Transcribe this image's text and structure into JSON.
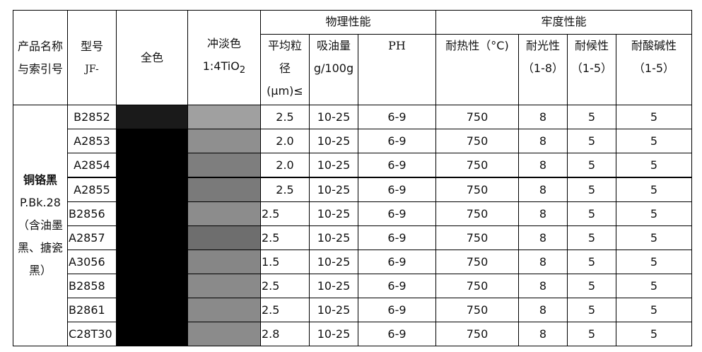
{
  "headers": {
    "product": "产品名称与索引号",
    "product_line1": "产品名称",
    "product_line2": "与索引号",
    "model_line1": "型号",
    "model_line2": "JF-",
    "masstone": "全色",
    "tint_line1": "冲淡色",
    "tint_line2": "1:4TiO",
    "tint_sub": "2",
    "physical": "物理性能",
    "fastness": "牢度性能",
    "particle_line1": "平均粒",
    "particle_line2": "径",
    "particle_line3": "(μm)≤",
    "oil_line1": "吸油量",
    "oil_line2": "g/100g",
    "ph": "PH",
    "heat": "耐热性（°C)",
    "light_line1": "耐光性",
    "light_line2": "（1-8）",
    "weather_line1": "耐候性",
    "weather_line2": "（1-5）",
    "acid_line1": "耐酸碱性",
    "acid_line2": "（1-5）"
  },
  "product": {
    "name": "铜铬黑",
    "index": "P.Bk.28",
    "note_line1": "（含油墨",
    "note_line2": "黑、搪瓷",
    "note_line3": "黑）"
  },
  "rows": [
    {
      "model": "B2852",
      "masstone": "#1a1a1a",
      "tint": "#a0a0a0",
      "particle": "2.5",
      "oil": "10-25",
      "ph": "6-9",
      "heat": "750",
      "light": "8",
      "weather": "5",
      "acid": "5"
    },
    {
      "model": "A2853",
      "masstone": "#000000",
      "tint": "#8f8f8f",
      "particle": "2.0",
      "oil": "10-25",
      "ph": "6-9",
      "heat": "750",
      "light": "8",
      "weather": "5",
      "acid": "5"
    },
    {
      "model": "A2854",
      "masstone": "#000000",
      "tint": "#7e7e7e",
      "particle": "2.0",
      "oil": "10-25",
      "ph": "6-9",
      "heat": "750",
      "light": "8",
      "weather": "5",
      "acid": "5"
    },
    {
      "model": "A2855",
      "masstone": "#000000",
      "tint": "#7a7a7a",
      "particle": "2.5",
      "oil": "10-25",
      "ph": "6-9",
      "heat": "750",
      "light": "8",
      "weather": "5",
      "acid": "5"
    },
    {
      "model": "B2856",
      "masstone": "#000000",
      "tint": "#8c8c8c",
      "particle": "2.5",
      "oil": "10-25",
      "ph": "6-9",
      "heat": "750",
      "light": "8",
      "weather": "5",
      "acid": "5"
    },
    {
      "model": "A2857",
      "masstone": "#000000",
      "tint": "#6e6e6e",
      "particle": "2.5",
      "oil": "10-25",
      "ph": "6-9",
      "heat": "750",
      "light": "8",
      "weather": "5",
      "acid": "5"
    },
    {
      "model": "A3056",
      "masstone": "#000000",
      "tint": "#868686",
      "particle": "1.5",
      "oil": "10-25",
      "ph": "6-9",
      "heat": "750",
      "light": "8",
      "weather": "5",
      "acid": "5"
    },
    {
      "model": "B2858",
      "masstone": "#000000",
      "tint": "#8a8a8a",
      "particle": "2.5",
      "oil": "10-25",
      "ph": "6-9",
      "heat": "750",
      "light": "8",
      "weather": "5",
      "acid": "5"
    },
    {
      "model": "B2861",
      "masstone": "#000000",
      "tint": "#8a8a8a",
      "particle": "2.5",
      "oil": "10-25",
      "ph": "6-9",
      "heat": "750",
      "light": "8",
      "weather": "5",
      "acid": "5"
    },
    {
      "model": "C28T30",
      "masstone": "#000000",
      "tint": "#8b8b8b",
      "particle": "2.8",
      "oil": "10-25",
      "ph": "6-9",
      "heat": "750",
      "light": "8",
      "weather": "5",
      "acid": "5"
    }
  ]
}
